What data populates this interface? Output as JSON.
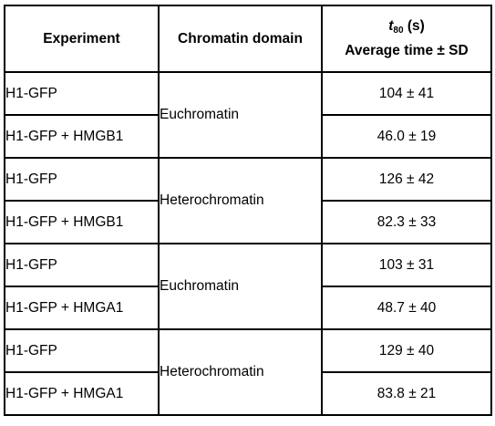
{
  "table": {
    "headers": {
      "experiment": "Experiment",
      "domain": "Chromatin domain",
      "t_symbol": "t",
      "t_subscript": "80",
      "t_unit": "(s)",
      "value_label": "Average time ± SD"
    },
    "rows": [
      {
        "experiment": "H1-GFP",
        "domain": "Euchromatin",
        "value": "104 ± 41"
      },
      {
        "experiment": "H1-GFP + HMGB1",
        "domain": "Euchromatin",
        "value": "46.0 ± 19"
      },
      {
        "experiment": "H1-GFP",
        "domain": "Heterochromatin",
        "value": "126 ± 42"
      },
      {
        "experiment": "H1-GFP + HMGB1",
        "domain": "Heterochromatin",
        "value": "82.3 ± 33"
      },
      {
        "experiment": "H1-GFP",
        "domain": "Euchromatin",
        "value": "103 ± 31"
      },
      {
        "experiment": "H1-GFP + HMGA1",
        "domain": "Euchromatin",
        "value": "48.7 ± 40"
      },
      {
        "experiment": "H1-GFP",
        "domain": "Heterochromatin",
        "value": "129 ± 40"
      },
      {
        "experiment": "H1-GFP + HMGA1",
        "domain": "Heterochromatin",
        "value": "83.8 ± 21"
      }
    ]
  }
}
